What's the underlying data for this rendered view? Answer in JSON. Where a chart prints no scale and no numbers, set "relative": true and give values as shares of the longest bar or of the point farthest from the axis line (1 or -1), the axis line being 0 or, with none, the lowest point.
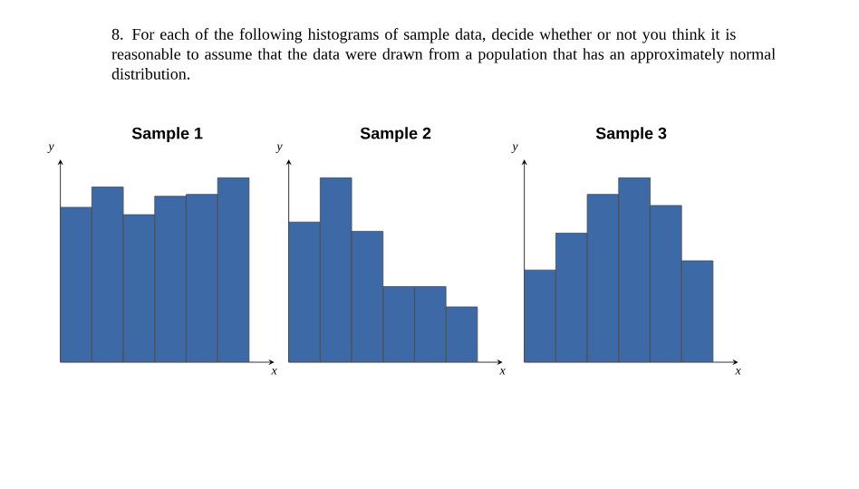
{
  "chart_data": [
    {
      "type": "bar",
      "title": "Sample 1",
      "xlabel": "x",
      "ylabel": "y",
      "relative": true,
      "color": "#3d6aa6",
      "annotations": [
        "8. For each of the following histograms of sample data, decide whether or not you think it is reasonable to assume that the data were drawn from a population that has an approximately normal distribution."
      ],
      "categories": [
        null,
        null,
        null,
        null,
        null,
        null
      ],
      "values": [
        0.84,
        0.95,
        0.8,
        0.9,
        0.91,
        1
      ]
    },
    {
      "type": "bar",
      "title": "Sample 2",
      "xlabel": "x",
      "ylabel": "y",
      "relative": true,
      "color": "#3d6aa6",
      "categories": [
        null,
        null,
        null,
        null,
        null,
        null
      ],
      "values": [
        0.76,
        1,
        0.71,
        0.41,
        0.41,
        0.3
      ]
    },
    {
      "type": "bar",
      "title": "Sample 3",
      "xlabel": "x",
      "ylabel": "y",
      "relative": true,
      "color": "#3d6aa6",
      "categories": [
        null,
        null,
        null,
        null,
        null,
        null
      ],
      "values": [
        0.5,
        0.7,
        0.91,
        1,
        0.85,
        0.55
      ]
    }
  ]
}
